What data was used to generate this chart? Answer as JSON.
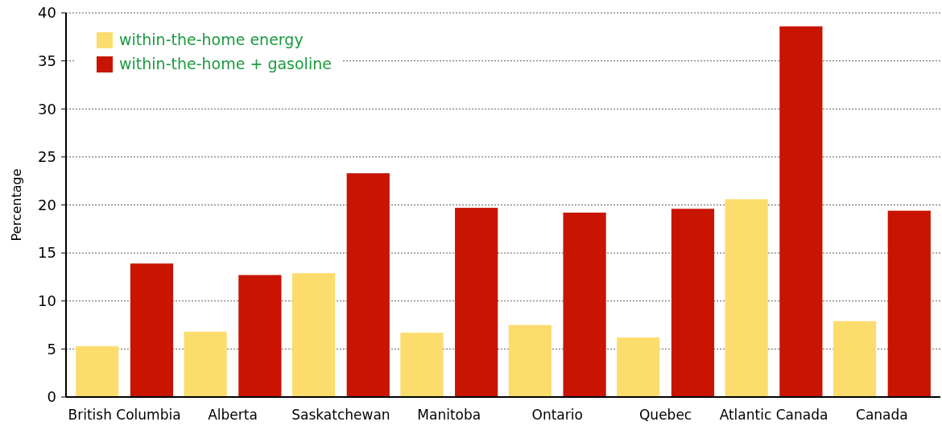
{
  "chart_data": {
    "type": "bar",
    "ylabel": "Percentage",
    "categories": [
      "British Columbia",
      "Alberta",
      "Saskatchewan",
      "Manitoba",
      "Ontario",
      "Quebec",
      "Atlantic Canada",
      "Canada"
    ],
    "series": [
      {
        "name": "within-the-home energy",
        "color": "#fddc6e",
        "values": [
          5.3,
          6.8,
          12.9,
          6.7,
          7.5,
          6.2,
          20.6,
          7.9
        ]
      },
      {
        "name": "within-the-home + gasoline",
        "color": "#c81400",
        "values": [
          13.9,
          12.7,
          23.3,
          19.7,
          19.2,
          19.6,
          38.6,
          19.4
        ]
      }
    ],
    "ylim": [
      0,
      40
    ],
    "yticks": [
      0,
      5,
      10,
      15,
      20,
      25,
      30,
      35,
      40
    ],
    "grid": "y",
    "legend": "top left"
  }
}
